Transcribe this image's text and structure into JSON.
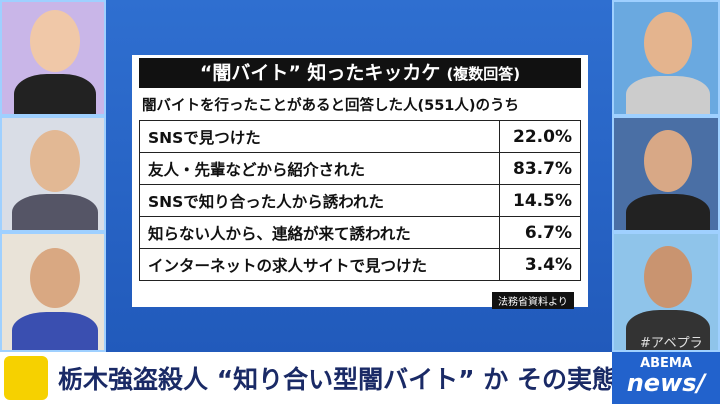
{
  "panel": {
    "title": "“闇バイト” 知ったキッカケ",
    "title_note": "(複数回答)",
    "subtitle": "闇バイトを行ったことがあると回答した人(551人)のうち",
    "table": {
      "rows": [
        [
          "SNSで見つけた",
          "22.0%"
        ],
        [
          "友人・先輩などから紹介された",
          "83.7%"
        ],
        [
          "SNSで知り合った人から誘われた",
          "14.5%"
        ],
        [
          "知らない人から、連絡が来て誘われた",
          "6.7%"
        ],
        [
          "インターネットの求人サイトで見つけた",
          "3.4%"
        ]
      ]
    },
    "source": "法務省資料より"
  },
  "caption": "栃木強盗殺人 “知り合い型闇バイト” か その実態",
  "logo": {
    "top": "ABEMA",
    "bottom": "news/"
  },
  "watermark": "#アベプラ"
}
